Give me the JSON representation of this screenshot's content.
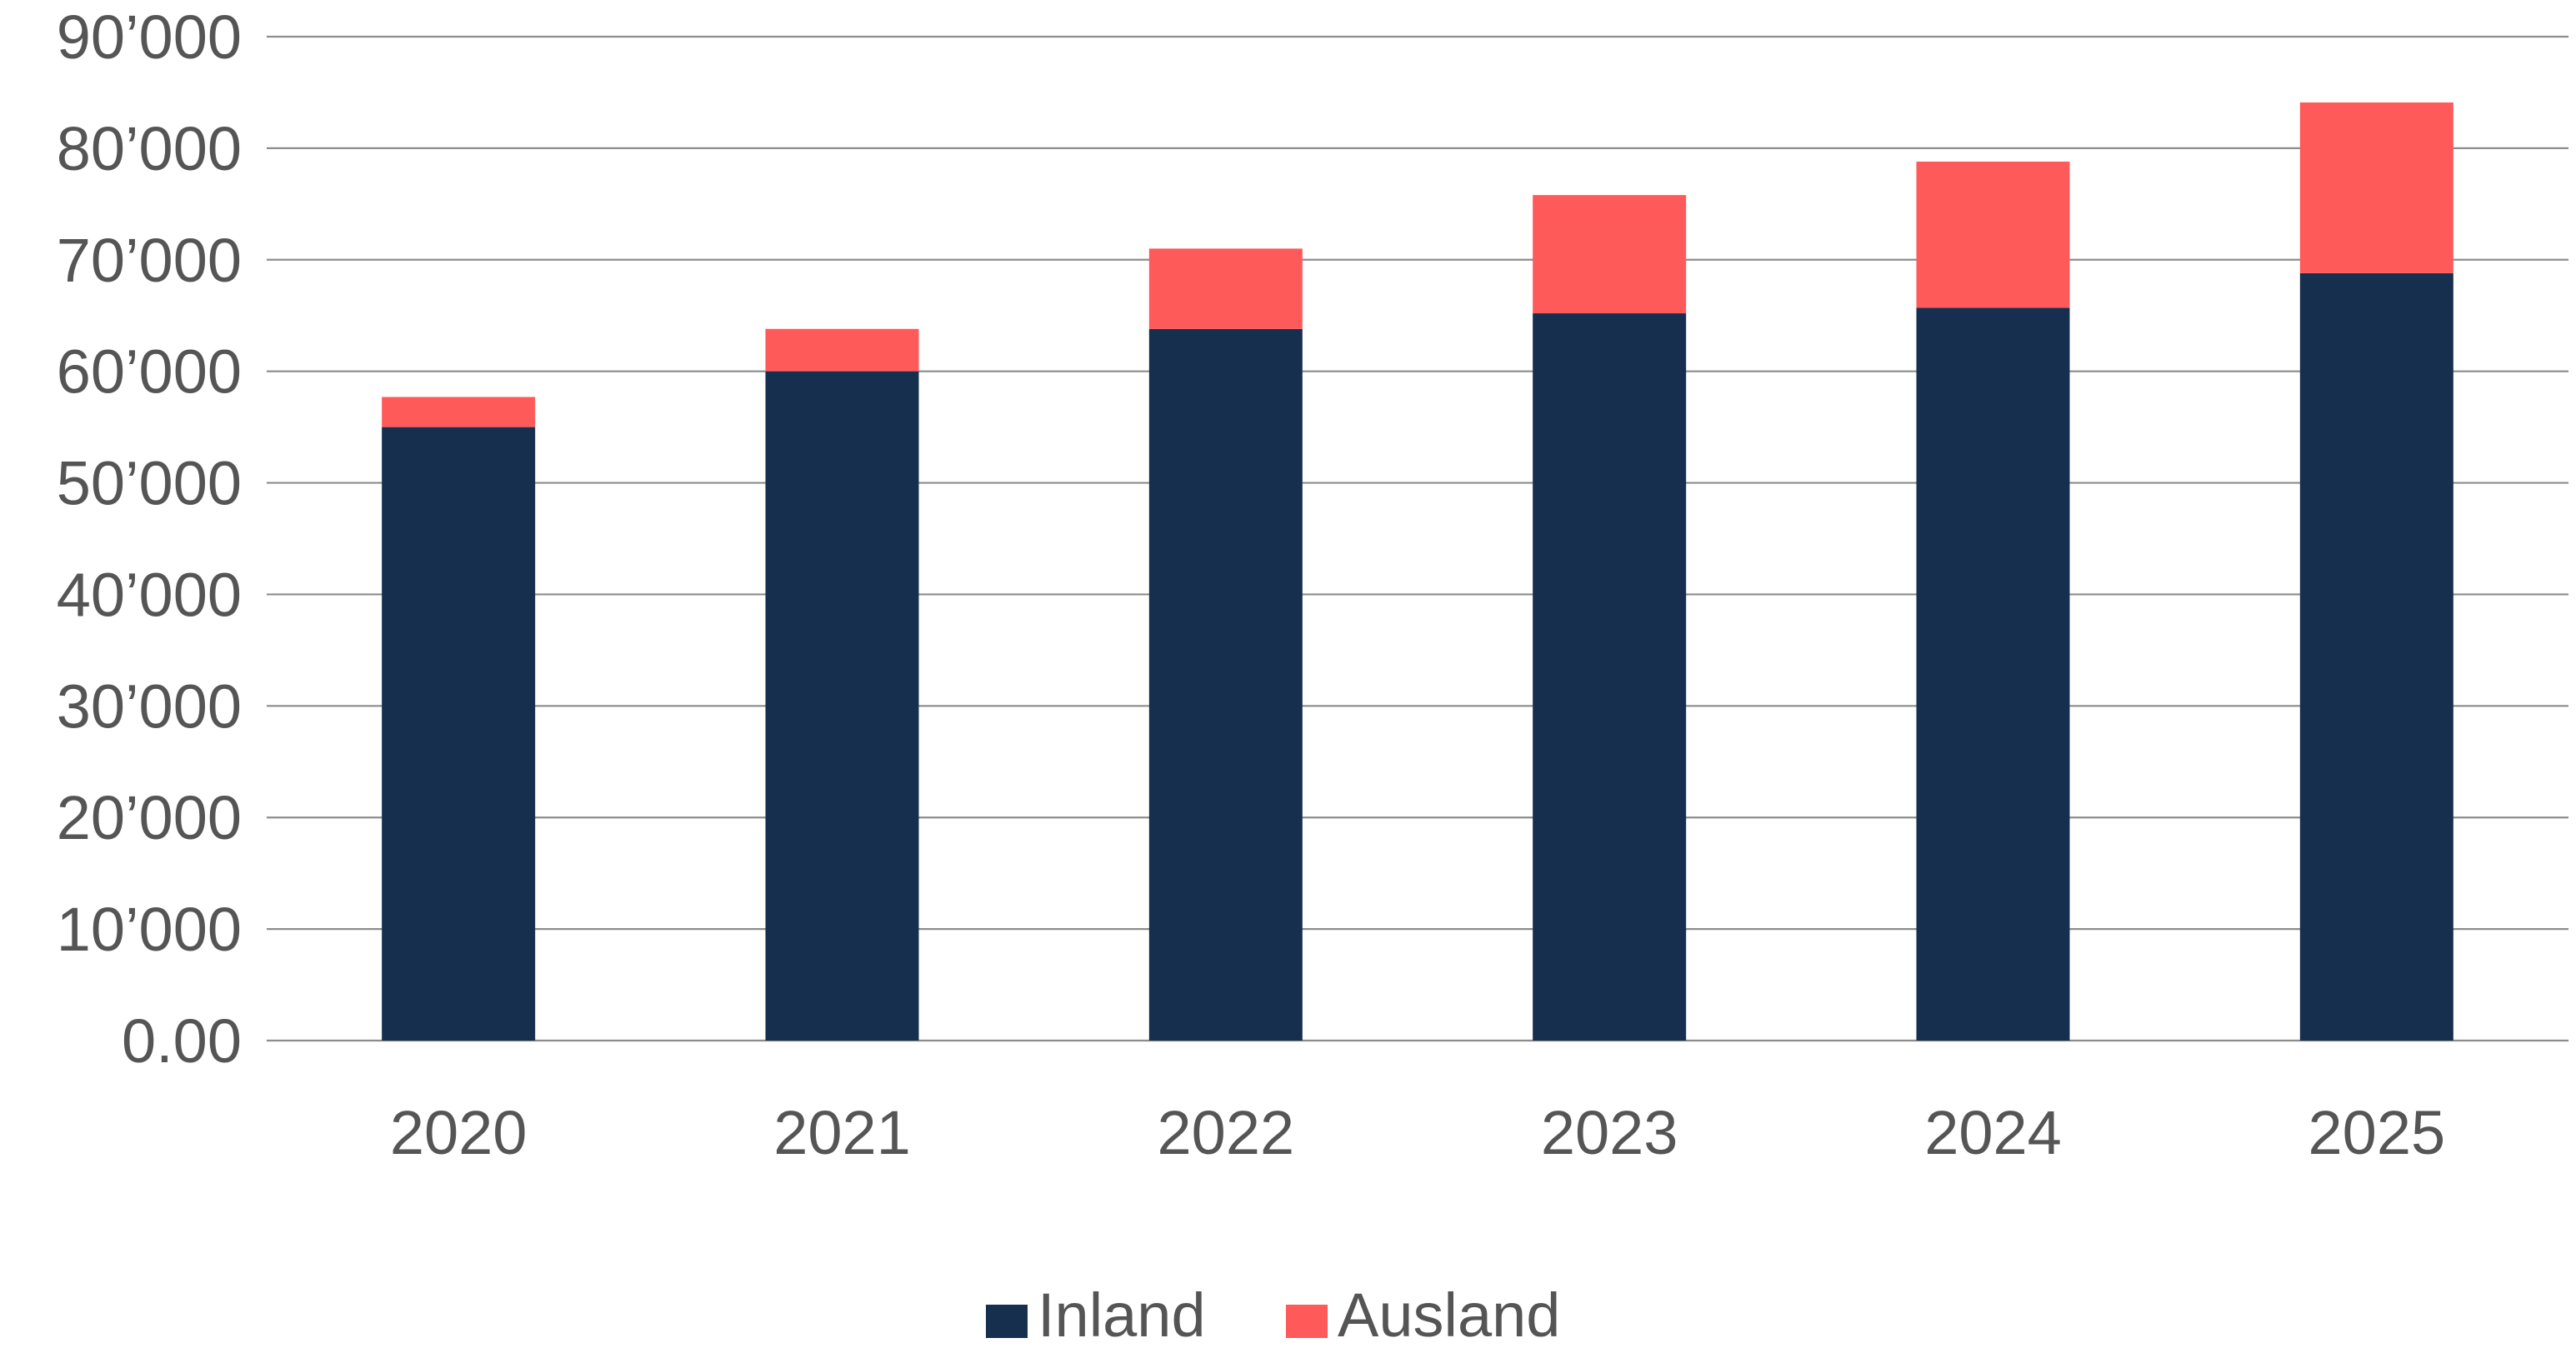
{
  "chart_data": {
    "type": "bar",
    "stacked": true,
    "categories": [
      "2020",
      "2021",
      "2022",
      "2023",
      "2024",
      "2025"
    ],
    "series": [
      {
        "name": "Inland",
        "color": "#172f4f",
        "values": [
          55000,
          60000,
          63800,
          65200,
          65700,
          68800
        ]
      },
      {
        "name": "Ausland",
        "color": "#ff5a5a",
        "values": [
          2700,
          3800,
          7200,
          10600,
          13100,
          15300
        ]
      }
    ],
    "ylim": [
      0,
      90000
    ],
    "y_tick_labels": [
      "0.00",
      "10’000",
      "20’000",
      "30’000",
      "40’000",
      "50’000",
      "60’000",
      "70’000",
      "80’000",
      "90’000"
    ],
    "grid": true,
    "legend_position": "bottom-center",
    "title": "",
    "xlabel": "",
    "ylabel": ""
  }
}
